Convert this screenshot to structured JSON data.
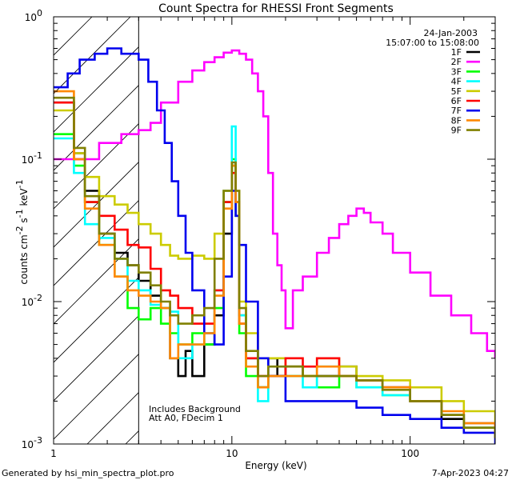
{
  "chart_data": {
    "type": "line",
    "title": "Count Spectra for RHESSI Front Segments",
    "xlabel": "Energy (keV)",
    "ylabel_parts": [
      "counts cm",
      "-2",
      " s",
      "-1",
      " keV",
      "-1"
    ],
    "xscale": "log",
    "yscale": "log",
    "xlim": [
      1,
      300
    ],
    "ylim": [
      0.001,
      1
    ],
    "x_ticks": [
      {
        "v": 1,
        "label": "1"
      },
      {
        "v": 10,
        "label": "10"
      },
      {
        "v": 100,
        "label": "100"
      }
    ],
    "y_ticks": [
      {
        "v": 1,
        "mant": "10",
        "exp": "0"
      },
      {
        "v": 0.1,
        "mant": "10",
        "exp": "-1"
      },
      {
        "v": 0.01,
        "mant": "10",
        "exp": "-2"
      },
      {
        "v": 0.001,
        "mant": "10",
        "exp": "-3"
      }
    ],
    "date": "24-Jan-2003",
    "time_range": "15:07:00 to 15:08:00",
    "attenuator_cutoff_kev": 3,
    "annotations": [
      "Includes Background",
      "Att A0, FDecim 1"
    ],
    "footer_left": "Generated by hsi_min_spectra_plot.pro",
    "footer_right": "7-Apr-2023 04:27",
    "series": [
      {
        "name": "1F",
        "color": "#000000",
        "points": [
          [
            1,
            0.25
          ],
          [
            1.3,
            0.11
          ],
          [
            1.5,
            0.06
          ],
          [
            1.8,
            0.03
          ],
          [
            2.2,
            0.022
          ],
          [
            2.6,
            0.018
          ],
          [
            3.0,
            0.014
          ],
          [
            3.5,
            0.011
          ],
          [
            4.0,
            0.009
          ],
          [
            4.5,
            0.004
          ],
          [
            5.0,
            0.003
          ],
          [
            5.5,
            0.0045
          ],
          [
            6.0,
            0.003
          ],
          [
            7.0,
            0.005
          ],
          [
            8.0,
            0.008
          ],
          [
            9.0,
            0.03
          ],
          [
            10,
            0.09
          ],
          [
            10.5,
            0.05
          ],
          [
            11,
            0.008
          ],
          [
            12,
            0.004
          ],
          [
            14,
            0.0025
          ],
          [
            16,
            0.004
          ],
          [
            18,
            0.003
          ],
          [
            20,
            0.0035
          ],
          [
            25,
            0.003
          ],
          [
            30,
            0.003
          ],
          [
            40,
            0.0035
          ],
          [
            50,
            0.0028
          ],
          [
            70,
            0.0025
          ],
          [
            100,
            0.002
          ],
          [
            150,
            0.0015
          ],
          [
            200,
            0.0013
          ],
          [
            300,
            0.0011
          ]
        ]
      },
      {
        "name": "2F",
        "color": "#ff00ff",
        "points": [
          [
            1,
            0.1
          ],
          [
            1.4,
            0.1
          ],
          [
            1.8,
            0.13
          ],
          [
            2.4,
            0.15
          ],
          [
            3.0,
            0.16
          ],
          [
            3.5,
            0.18
          ],
          [
            4.0,
            0.25
          ],
          [
            5.0,
            0.35
          ],
          [
            6.0,
            0.42
          ],
          [
            7.0,
            0.48
          ],
          [
            8.0,
            0.52
          ],
          [
            9.0,
            0.56
          ],
          [
            10,
            0.58
          ],
          [
            11,
            0.55
          ],
          [
            12,
            0.5
          ],
          [
            13,
            0.4
          ],
          [
            14,
            0.3
          ],
          [
            15,
            0.2
          ],
          [
            16,
            0.08
          ],
          [
            17,
            0.03
          ],
          [
            18,
            0.018
          ],
          [
            19,
            0.012
          ],
          [
            20,
            0.0065
          ],
          [
            22,
            0.012
          ],
          [
            25,
            0.015
          ],
          [
            30,
            0.022
          ],
          [
            35,
            0.028
          ],
          [
            40,
            0.035
          ],
          [
            45,
            0.04
          ],
          [
            50,
            0.045
          ],
          [
            55,
            0.042
          ],
          [
            60,
            0.036
          ],
          [
            70,
            0.03
          ],
          [
            80,
            0.022
          ],
          [
            100,
            0.016
          ],
          [
            130,
            0.011
          ],
          [
            170,
            0.008
          ],
          [
            220,
            0.006
          ],
          [
            270,
            0.0045
          ],
          [
            300,
            0.004
          ]
        ]
      },
      {
        "name": "3F",
        "color": "#00ff00",
        "points": [
          [
            1,
            0.15
          ],
          [
            1.3,
            0.09
          ],
          [
            1.5,
            0.05
          ],
          [
            1.8,
            0.025
          ],
          [
            2.2,
            0.015
          ],
          [
            2.6,
            0.009
          ],
          [
            3.0,
            0.0075
          ],
          [
            3.5,
            0.009
          ],
          [
            4.0,
            0.007
          ],
          [
            4.5,
            0.006
          ],
          [
            5.0,
            0.005
          ],
          [
            6.0,
            0.006
          ],
          [
            7.0,
            0.005
          ],
          [
            8.0,
            0.009
          ],
          [
            9.0,
            0.05
          ],
          [
            10,
            0.1
          ],
          [
            10.5,
            0.04
          ],
          [
            11,
            0.006
          ],
          [
            12,
            0.003
          ],
          [
            14,
            0.0025
          ],
          [
            16,
            0.003
          ],
          [
            20,
            0.003
          ],
          [
            25,
            0.003
          ],
          [
            30,
            0.0025
          ],
          [
            40,
            0.003
          ],
          [
            50,
            0.0025
          ],
          [
            70,
            0.0022
          ],
          [
            100,
            0.002
          ],
          [
            150,
            0.0016
          ],
          [
            200,
            0.0013
          ],
          [
            300,
            0.0011
          ]
        ]
      },
      {
        "name": "4F",
        "color": "#00ffff",
        "points": [
          [
            1,
            0.14
          ],
          [
            1.3,
            0.08
          ],
          [
            1.5,
            0.035
          ],
          [
            1.8,
            0.028
          ],
          [
            2.2,
            0.02
          ],
          [
            2.6,
            0.014
          ],
          [
            3.0,
            0.012
          ],
          [
            3.5,
            0.0095
          ],
          [
            4.0,
            0.009
          ],
          [
            4.5,
            0.0085
          ],
          [
            5.0,
            0.004
          ],
          [
            6.0,
            0.005
          ],
          [
            7.0,
            0.006
          ],
          [
            8.0,
            0.012
          ],
          [
            9.0,
            0.06
          ],
          [
            10,
            0.17
          ],
          [
            10.5,
            0.05
          ],
          [
            11,
            0.008
          ],
          [
            12,
            0.004
          ],
          [
            14,
            0.002
          ],
          [
            16,
            0.003
          ],
          [
            20,
            0.003
          ],
          [
            25,
            0.0025
          ],
          [
            30,
            0.0035
          ],
          [
            40,
            0.003
          ],
          [
            50,
            0.0025
          ],
          [
            70,
            0.0022
          ],
          [
            100,
            0.002
          ],
          [
            150,
            0.0016
          ],
          [
            200,
            0.0014
          ],
          [
            300,
            0.0012
          ]
        ]
      },
      {
        "name": "5F",
        "color": "#cccc00",
        "points": [
          [
            1,
            0.22
          ],
          [
            1.3,
            0.11
          ],
          [
            1.5,
            0.075
          ],
          [
            1.8,
            0.055
          ],
          [
            2.2,
            0.048
          ],
          [
            2.6,
            0.042
          ],
          [
            3.0,
            0.035
          ],
          [
            3.5,
            0.03
          ],
          [
            4.0,
            0.025
          ],
          [
            4.5,
            0.021
          ],
          [
            5.0,
            0.02
          ],
          [
            6.0,
            0.021
          ],
          [
            7.0,
            0.02
          ],
          [
            8.0,
            0.03
          ],
          [
            9.0,
            0.06
          ],
          [
            10,
            0.09
          ],
          [
            10.5,
            0.06
          ],
          [
            11,
            0.01
          ],
          [
            12,
            0.006
          ],
          [
            14,
            0.004
          ],
          [
            16,
            0.004
          ],
          [
            20,
            0.0035
          ],
          [
            25,
            0.003
          ],
          [
            30,
            0.004
          ],
          [
            40,
            0.0035
          ],
          [
            50,
            0.003
          ],
          [
            70,
            0.0028
          ],
          [
            100,
            0.0025
          ],
          [
            150,
            0.002
          ],
          [
            200,
            0.0017
          ],
          [
            300,
            0.0013
          ]
        ]
      },
      {
        "name": "6F",
        "color": "#ff0000",
        "points": [
          [
            1,
            0.25
          ],
          [
            1.3,
            0.1
          ],
          [
            1.5,
            0.05
          ],
          [
            1.8,
            0.04
          ],
          [
            2.2,
            0.032
          ],
          [
            2.6,
            0.025
          ],
          [
            3.0,
            0.024
          ],
          [
            3.5,
            0.017
          ],
          [
            4.0,
            0.012
          ],
          [
            4.5,
            0.011
          ],
          [
            5.0,
            0.009
          ],
          [
            6.0,
            0.007
          ],
          [
            7.0,
            0.007
          ],
          [
            8.0,
            0.012
          ],
          [
            9.0,
            0.05
          ],
          [
            10,
            0.08
          ],
          [
            10.5,
            0.05
          ],
          [
            11,
            0.007
          ],
          [
            12,
            0.004
          ],
          [
            14,
            0.003
          ],
          [
            16,
            0.003
          ],
          [
            20,
            0.004
          ],
          [
            25,
            0.0035
          ],
          [
            30,
            0.004
          ],
          [
            40,
            0.003
          ],
          [
            50,
            0.0028
          ],
          [
            70,
            0.0025
          ],
          [
            100,
            0.002
          ],
          [
            150,
            0.0016
          ],
          [
            200,
            0.0014
          ],
          [
            300,
            0.0011
          ]
        ]
      },
      {
        "name": "7F",
        "color": "#0000ee",
        "points": [
          [
            1,
            0.32
          ],
          [
            1.2,
            0.4
          ],
          [
            1.4,
            0.5
          ],
          [
            1.7,
            0.55
          ],
          [
            2.0,
            0.6
          ],
          [
            2.4,
            0.55
          ],
          [
            2.8,
            0.55
          ],
          [
            3.0,
            0.5
          ],
          [
            3.4,
            0.35
          ],
          [
            3.8,
            0.22
          ],
          [
            4.2,
            0.13
          ],
          [
            4.6,
            0.07
          ],
          [
            5.0,
            0.04
          ],
          [
            5.5,
            0.022
          ],
          [
            6.0,
            0.012
          ],
          [
            7.0,
            0.006
          ],
          [
            8.0,
            0.005
          ],
          [
            9.0,
            0.015
          ],
          [
            10,
            0.06
          ],
          [
            10.5,
            0.04
          ],
          [
            11,
            0.025
          ],
          [
            12,
            0.01
          ],
          [
            14,
            0.004
          ],
          [
            16,
            0.003
          ],
          [
            20,
            0.002
          ],
          [
            25,
            0.002
          ],
          [
            30,
            0.002
          ],
          [
            40,
            0.002
          ],
          [
            50,
            0.0018
          ],
          [
            70,
            0.0016
          ],
          [
            100,
            0.0015
          ],
          [
            150,
            0.0013
          ],
          [
            200,
            0.0012
          ],
          [
            300,
            0.001
          ]
        ]
      },
      {
        "name": "8F",
        "color": "#ff8800",
        "points": [
          [
            1,
            0.3
          ],
          [
            1.3,
            0.1
          ],
          [
            1.5,
            0.045
          ],
          [
            1.8,
            0.025
          ],
          [
            2.2,
            0.015
          ],
          [
            2.6,
            0.012
          ],
          [
            3.0,
            0.011
          ],
          [
            3.5,
            0.01
          ],
          [
            4.0,
            0.009
          ],
          [
            4.5,
            0.004
          ],
          [
            5.0,
            0.005
          ],
          [
            6.0,
            0.005
          ],
          [
            7.0,
            0.006
          ],
          [
            8.0,
            0.011
          ],
          [
            9.0,
            0.045
          ],
          [
            10,
            0.09
          ],
          [
            10.5,
            0.05
          ],
          [
            11,
            0.007
          ],
          [
            12,
            0.0035
          ],
          [
            14,
            0.0025
          ],
          [
            16,
            0.003
          ],
          [
            20,
            0.003
          ],
          [
            25,
            0.003
          ],
          [
            30,
            0.0035
          ],
          [
            40,
            0.003
          ],
          [
            50,
            0.0028
          ],
          [
            70,
            0.0025
          ],
          [
            100,
            0.002
          ],
          [
            150,
            0.0017
          ],
          [
            200,
            0.0014
          ],
          [
            300,
            0.0012
          ]
        ]
      },
      {
        "name": "9F",
        "color": "#808000",
        "points": [
          [
            1,
            0.27
          ],
          [
            1.3,
            0.12
          ],
          [
            1.5,
            0.055
          ],
          [
            1.8,
            0.03
          ],
          [
            2.2,
            0.02
          ],
          [
            2.6,
            0.018
          ],
          [
            3.0,
            0.016
          ],
          [
            3.5,
            0.013
          ],
          [
            4.0,
            0.01
          ],
          [
            4.5,
            0.008
          ],
          [
            5.0,
            0.007
          ],
          [
            6.0,
            0.008
          ],
          [
            7.0,
            0.009
          ],
          [
            8.0,
            0.02
          ],
          [
            9.0,
            0.06
          ],
          [
            10,
            0.095
          ],
          [
            10.5,
            0.06
          ],
          [
            11,
            0.009
          ],
          [
            12,
            0.0045
          ],
          [
            14,
            0.003
          ],
          [
            16,
            0.0035
          ],
          [
            20,
            0.0035
          ],
          [
            25,
            0.003
          ],
          [
            30,
            0.003
          ],
          [
            40,
            0.003
          ],
          [
            50,
            0.0028
          ],
          [
            70,
            0.0024
          ],
          [
            100,
            0.002
          ],
          [
            150,
            0.0016
          ],
          [
            200,
            0.0013
          ],
          [
            300,
            0.0011
          ]
        ]
      }
    ]
  }
}
